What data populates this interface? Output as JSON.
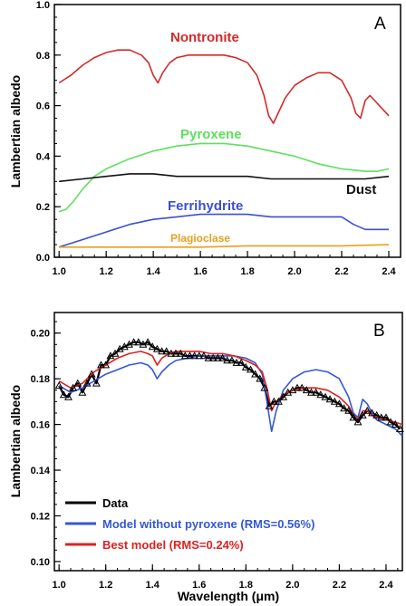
{
  "chart_data": [
    {
      "type": "line",
      "panel_label": "A",
      "xlabel": "",
      "ylabel": "Lambertian albedo",
      "xlim": [
        0.98,
        2.45
      ],
      "ylim": [
        0.0,
        1.0
      ],
      "xticks": [
        "1.0",
        "1.2",
        "1.4",
        "1.6",
        "1.8",
        "2.0",
        "2.2",
        "2.4"
      ],
      "yticks": [
        "0.0",
        "0.2",
        "0.4",
        "0.6",
        "0.8",
        "1.0"
      ],
      "grid": false,
      "series": [
        {
          "name": "Nontronite",
          "color": "#d42a2a",
          "x": [
            1.0,
            1.05,
            1.1,
            1.15,
            1.2,
            1.25,
            1.3,
            1.35,
            1.38,
            1.4,
            1.42,
            1.44,
            1.47,
            1.5,
            1.55,
            1.6,
            1.65,
            1.7,
            1.75,
            1.8,
            1.84,
            1.87,
            1.89,
            1.91,
            1.93,
            1.96,
            2.0,
            2.05,
            2.1,
            2.15,
            2.2,
            2.24,
            2.26,
            2.28,
            2.3,
            2.32,
            2.34,
            2.36,
            2.38,
            2.4
          ],
          "y": [
            0.69,
            0.72,
            0.76,
            0.79,
            0.81,
            0.82,
            0.82,
            0.8,
            0.77,
            0.72,
            0.69,
            0.73,
            0.77,
            0.79,
            0.8,
            0.8,
            0.8,
            0.8,
            0.79,
            0.77,
            0.72,
            0.64,
            0.56,
            0.53,
            0.57,
            0.63,
            0.68,
            0.71,
            0.73,
            0.73,
            0.7,
            0.63,
            0.57,
            0.55,
            0.62,
            0.64,
            0.62,
            0.6,
            0.58,
            0.56
          ]
        },
        {
          "name": "Pyroxene",
          "color": "#5ee05e",
          "x": [
            1.0,
            1.03,
            1.06,
            1.1,
            1.15,
            1.2,
            1.3,
            1.4,
            1.5,
            1.6,
            1.7,
            1.8,
            1.9,
            2.0,
            2.1,
            2.2,
            2.3,
            2.35,
            2.4
          ],
          "y": [
            0.18,
            0.19,
            0.22,
            0.27,
            0.32,
            0.35,
            0.39,
            0.42,
            0.44,
            0.45,
            0.45,
            0.44,
            0.42,
            0.4,
            0.37,
            0.35,
            0.34,
            0.34,
            0.35
          ]
        },
        {
          "name": "Dust",
          "color": "#111111",
          "x": [
            1.0,
            1.1,
            1.2,
            1.3,
            1.4,
            1.5,
            1.6,
            1.7,
            1.8,
            1.9,
            2.0,
            2.1,
            2.2,
            2.3,
            2.4
          ],
          "y": [
            0.3,
            0.31,
            0.32,
            0.33,
            0.33,
            0.32,
            0.32,
            0.32,
            0.32,
            0.31,
            0.31,
            0.31,
            0.31,
            0.31,
            0.32
          ]
        },
        {
          "name": "Ferrihydrite",
          "color": "#3b4fcf",
          "x": [
            1.0,
            1.1,
            1.2,
            1.3,
            1.4,
            1.5,
            1.6,
            1.7,
            1.8,
            1.9,
            2.0,
            2.1,
            2.2,
            2.25,
            2.3,
            2.35,
            2.4
          ],
          "y": [
            0.04,
            0.07,
            0.1,
            0.13,
            0.15,
            0.16,
            0.17,
            0.17,
            0.17,
            0.16,
            0.16,
            0.16,
            0.16,
            0.13,
            0.11,
            0.11,
            0.11
          ]
        },
        {
          "name": "Plagioclase",
          "color": "#e8a020",
          "x": [
            1.0,
            1.2,
            1.4,
            1.6,
            1.8,
            2.0,
            2.2,
            2.4
          ],
          "y": [
            0.04,
            0.04,
            0.04,
            0.04,
            0.045,
            0.045,
            0.045,
            0.05
          ]
        }
      ]
    },
    {
      "type": "line",
      "panel_label": "B",
      "xlabel": "Wavelength (μm)",
      "ylabel": "Lambertian albedo",
      "xlim": [
        0.98,
        2.47
      ],
      "ylim": [
        0.096,
        0.209
      ],
      "xticks": [
        "1.0",
        "1.2",
        "1.4",
        "1.6",
        "1.8",
        "2.0",
        "2.2",
        "2.4"
      ],
      "yticks": [
        "0.10",
        "0.12",
        "0.14",
        "0.16",
        "0.18",
        "0.20"
      ],
      "grid": false,
      "legend": "lower-left",
      "series": [
        {
          "name": "Data",
          "color": "#000000",
          "marker": "triangle",
          "x": [
            1.0,
            1.02,
            1.04,
            1.06,
            1.08,
            1.1,
            1.12,
            1.14,
            1.16,
            1.18,
            1.2,
            1.22,
            1.24,
            1.26,
            1.28,
            1.3,
            1.32,
            1.34,
            1.36,
            1.38,
            1.4,
            1.42,
            1.44,
            1.46,
            1.48,
            1.5,
            1.52,
            1.54,
            1.56,
            1.58,
            1.6,
            1.62,
            1.64,
            1.66,
            1.68,
            1.7,
            1.72,
            1.74,
            1.76,
            1.78,
            1.8,
            1.82,
            1.84,
            1.86,
            1.88,
            1.9,
            1.92,
            1.94,
            1.96,
            1.98,
            2.0,
            2.02,
            2.04,
            2.06,
            2.08,
            2.1,
            2.12,
            2.14,
            2.16,
            2.18,
            2.2,
            2.22,
            2.24,
            2.26,
            2.28,
            2.3,
            2.32,
            2.34,
            2.36,
            2.38,
            2.4,
            2.42,
            2.44,
            2.46
          ],
          "y": [
            0.177,
            0.173,
            0.172,
            0.176,
            0.178,
            0.174,
            0.178,
            0.182,
            0.178,
            0.186,
            0.186,
            0.19,
            0.191,
            0.193,
            0.194,
            0.195,
            0.196,
            0.196,
            0.195,
            0.196,
            0.194,
            0.193,
            0.192,
            0.192,
            0.191,
            0.191,
            0.191,
            0.19,
            0.19,
            0.19,
            0.19,
            0.19,
            0.189,
            0.189,
            0.189,
            0.189,
            0.188,
            0.188,
            0.187,
            0.187,
            0.185,
            0.184,
            0.182,
            0.18,
            0.176,
            0.168,
            0.17,
            0.17,
            0.172,
            0.174,
            0.175,
            0.176,
            0.176,
            0.175,
            0.174,
            0.174,
            0.173,
            0.172,
            0.171,
            0.17,
            0.169,
            0.167,
            0.166,
            0.163,
            0.161,
            0.164,
            0.166,
            0.165,
            0.164,
            0.163,
            0.163,
            0.161,
            0.16,
            0.158
          ]
        },
        {
          "name": "Model without pyroxene (RMS=0.56%)",
          "color": "#3357d6",
          "x": [
            1.0,
            1.05,
            1.1,
            1.15,
            1.2,
            1.25,
            1.3,
            1.35,
            1.38,
            1.4,
            1.42,
            1.44,
            1.47,
            1.5,
            1.55,
            1.6,
            1.65,
            1.7,
            1.75,
            1.8,
            1.84,
            1.87,
            1.89,
            1.91,
            1.93,
            1.96,
            2.0,
            2.05,
            2.1,
            2.15,
            2.2,
            2.24,
            2.26,
            2.28,
            2.3,
            2.32,
            2.34,
            2.36,
            2.4,
            2.44,
            2.47
          ],
          "y": [
            0.177,
            0.174,
            0.176,
            0.179,
            0.182,
            0.184,
            0.186,
            0.187,
            0.186,
            0.184,
            0.18,
            0.183,
            0.186,
            0.188,
            0.189,
            0.19,
            0.19,
            0.19,
            0.19,
            0.189,
            0.187,
            0.182,
            0.17,
            0.157,
            0.166,
            0.175,
            0.18,
            0.183,
            0.184,
            0.183,
            0.18,
            0.172,
            0.165,
            0.163,
            0.171,
            0.169,
            0.165,
            0.162,
            0.16,
            0.158,
            0.155
          ]
        },
        {
          "name": "Best model (RMS=0.24%)",
          "color": "#e02020",
          "x": [
            1.0,
            1.05,
            1.1,
            1.15,
            1.2,
            1.25,
            1.3,
            1.35,
            1.38,
            1.4,
            1.42,
            1.44,
            1.47,
            1.5,
            1.55,
            1.6,
            1.65,
            1.7,
            1.75,
            1.8,
            1.84,
            1.87,
            1.89,
            1.91,
            1.93,
            1.96,
            2.0,
            2.05,
            2.1,
            2.15,
            2.2,
            2.24,
            2.26,
            2.28,
            2.3,
            2.32,
            2.34,
            2.36,
            2.4,
            2.44,
            2.47
          ],
          "y": [
            0.179,
            0.176,
            0.178,
            0.183,
            0.186,
            0.189,
            0.191,
            0.192,
            0.191,
            0.19,
            0.186,
            0.189,
            0.191,
            0.192,
            0.192,
            0.192,
            0.191,
            0.191,
            0.19,
            0.188,
            0.186,
            0.183,
            0.176,
            0.166,
            0.17,
            0.173,
            0.175,
            0.176,
            0.176,
            0.175,
            0.172,
            0.168,
            0.164,
            0.162,
            0.166,
            0.166,
            0.164,
            0.163,
            0.162,
            0.161,
            0.16
          ]
        }
      ]
    }
  ]
}
